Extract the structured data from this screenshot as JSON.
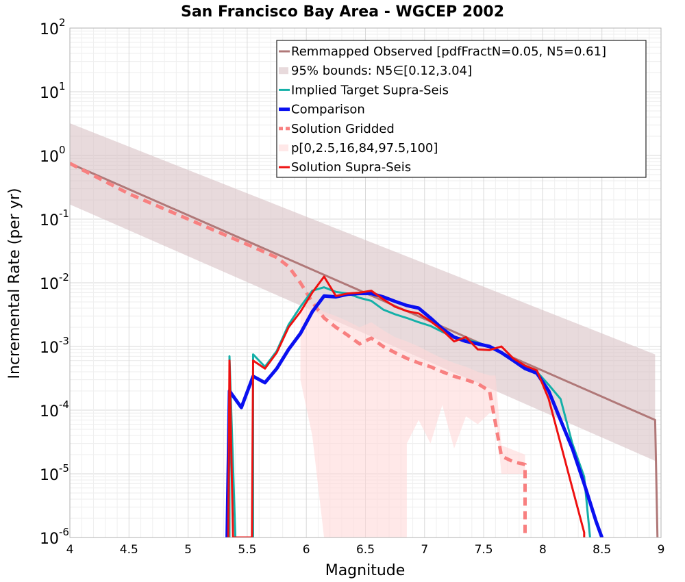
{
  "chart_data": {
    "type": "line",
    "title": "San Francisco Bay Area - WGCEP 2002",
    "xlabel": "Magnitude",
    "ylabel": "Incremental Rate (per yr)",
    "xlim": [
      4,
      9
    ],
    "ylim": [
      1e-06,
      100
    ],
    "yscale": "log",
    "grid": true,
    "legend_position": "top-right",
    "xticks": [
      "4",
      "4.5",
      "5",
      "5.5",
      "6",
      "6.5",
      "7",
      "7.5",
      "8",
      "8.5",
      "9"
    ],
    "yticks": [
      {
        "base": "10",
        "exp": "-6",
        "value": 1e-06
      },
      {
        "base": "10",
        "exp": "-5",
        "value": 1e-05
      },
      {
        "base": "10",
        "exp": "-4",
        "value": 0.0001
      },
      {
        "base": "10",
        "exp": "-3",
        "value": 0.001
      },
      {
        "base": "10",
        "exp": "-2",
        "value": 0.01
      },
      {
        "base": "10",
        "exp": "-1",
        "value": 0.1
      },
      {
        "base": "10",
        "exp": "0",
        "value": 1
      },
      {
        "base": "10",
        "exp": "1",
        "value": 10
      },
      {
        "base": "10",
        "exp": "2",
        "value": 100
      }
    ],
    "series": [
      {
        "name": "Remmapped Observed [pdfFractN=0.05, N5=0.61]",
        "style": "line",
        "color": "#b07878",
        "width": 3,
        "points": [
          [
            4.0,
            0.75
          ],
          [
            8.95,
            7e-05
          ],
          [
            8.97,
            1e-06
          ]
        ]
      },
      {
        "name": "95% bounds: N5∈[0.12,3.04]",
        "style": "band",
        "color": "#d9c2c4",
        "opacity": 0.6,
        "upper": [
          [
            4.0,
            3.2
          ],
          [
            8.95,
            0.00075
          ]
        ],
        "lower": [
          [
            4.0,
            0.17
          ],
          [
            8.95,
            1.6e-05
          ]
        ]
      },
      {
        "name": "Implied Target Supra-Seis",
        "style": "line",
        "color": "#14b0a8",
        "width": 3,
        "points": [
          [
            5.35,
            1e-06
          ],
          [
            5.35,
            0.0007
          ],
          [
            5.4,
            1e-06
          ],
          [
            5.55,
            1e-06
          ],
          [
            5.55,
            0.00075
          ],
          [
            5.65,
            0.00048
          ],
          [
            5.75,
            0.00085
          ],
          [
            5.85,
            0.0022
          ],
          [
            5.95,
            0.0042
          ],
          [
            6.05,
            0.0075
          ],
          [
            6.15,
            0.0085
          ],
          [
            6.25,
            0.0072
          ],
          [
            6.35,
            0.0068
          ],
          [
            6.45,
            0.0058
          ],
          [
            6.55,
            0.0052
          ],
          [
            6.65,
            0.0038
          ],
          [
            6.75,
            0.0032
          ],
          [
            6.85,
            0.0028
          ],
          [
            6.95,
            0.0024
          ],
          [
            7.05,
            0.0021
          ],
          [
            7.15,
            0.0017
          ],
          [
            7.25,
            0.0014
          ],
          [
            7.35,
            0.0013
          ],
          [
            7.45,
            0.00115
          ],
          [
            7.55,
            0.001
          ],
          [
            7.65,
            0.0008
          ],
          [
            7.75,
            0.0006
          ],
          [
            7.85,
            0.00048
          ],
          [
            7.95,
            0.0004
          ],
          [
            8.05,
            0.00025
          ],
          [
            8.15,
            0.00015
          ],
          [
            8.25,
            3e-05
          ],
          [
            8.35,
            9e-06
          ],
          [
            8.4,
            1e-06
          ]
        ]
      },
      {
        "name": "Comparison",
        "style": "line",
        "color": "#0a10f0",
        "width": 5,
        "points": [
          [
            5.33,
            1e-06
          ],
          [
            5.35,
            0.0002
          ],
          [
            5.45,
            0.00011
          ],
          [
            5.55,
            0.00034
          ],
          [
            5.65,
            0.00027
          ],
          [
            5.75,
            0.00045
          ],
          [
            5.85,
            0.0009
          ],
          [
            5.95,
            0.0016
          ],
          [
            6.05,
            0.0035
          ],
          [
            6.15,
            0.0062
          ],
          [
            6.25,
            0.006
          ],
          [
            6.35,
            0.0066
          ],
          [
            6.45,
            0.0068
          ],
          [
            6.55,
            0.0068
          ],
          [
            6.65,
            0.006
          ],
          [
            6.75,
            0.0051
          ],
          [
            6.85,
            0.0044
          ],
          [
            6.95,
            0.004
          ],
          [
            7.05,
            0.0028
          ],
          [
            7.15,
            0.0019
          ],
          [
            7.25,
            0.0014
          ],
          [
            7.35,
            0.0012
          ],
          [
            7.45,
            0.0011
          ],
          [
            7.55,
            0.001
          ],
          [
            7.65,
            0.0008
          ],
          [
            7.75,
            0.0006
          ],
          [
            7.85,
            0.00045
          ],
          [
            7.95,
            0.00038
          ],
          [
            8.05,
            0.0002
          ],
          [
            8.15,
            7e-05
          ],
          [
            8.25,
            2.5e-05
          ],
          [
            8.35,
            7e-06
          ],
          [
            8.45,
            1.8e-06
          ],
          [
            8.5,
            1e-06
          ]
        ]
      },
      {
        "name": "Solution Gridded",
        "style": "dashed",
        "color": "#f88080",
        "width": 5,
        "points": [
          [
            4.0,
            0.75
          ],
          [
            4.5,
            0.25
          ],
          [
            5.0,
            0.1
          ],
          [
            5.5,
            0.04
          ],
          [
            5.75,
            0.025
          ],
          [
            5.85,
            0.018
          ],
          [
            5.95,
            0.01
          ],
          [
            6.05,
            0.005
          ],
          [
            6.15,
            0.0028
          ],
          [
            6.25,
            0.002
          ],
          [
            6.35,
            0.0015
          ],
          [
            6.45,
            0.0011
          ],
          [
            6.55,
            0.00135
          ],
          [
            6.65,
            0.001
          ],
          [
            6.75,
            0.0008
          ],
          [
            6.85,
            0.00065
          ],
          [
            6.95,
            0.00055
          ],
          [
            7.05,
            0.00048
          ],
          [
            7.15,
            0.0004
          ],
          [
            7.25,
            0.00034
          ],
          [
            7.35,
            0.0003
          ],
          [
            7.45,
            0.00026
          ],
          [
            7.55,
            0.0002
          ],
          [
            7.65,
            1.9e-05
          ],
          [
            7.75,
            1.55e-05
          ],
          [
            7.85,
            1.4e-05
          ],
          [
            7.85,
            1e-06
          ]
        ]
      },
      {
        "name": "p[0,2.5,16,84,97.5,100]",
        "style": "band",
        "color": "#ffd8d8",
        "opacity": 0.6,
        "upper": [
          [
            5.95,
            0.006
          ],
          [
            6.05,
            0.0045
          ],
          [
            6.15,
            0.0035
          ],
          [
            6.25,
            0.003
          ],
          [
            6.35,
            0.0025
          ],
          [
            6.45,
            0.002
          ],
          [
            6.55,
            0.0024
          ],
          [
            6.65,
            0.0018
          ],
          [
            6.75,
            0.0014
          ],
          [
            6.85,
            0.0012
          ],
          [
            6.95,
            0.001
          ],
          [
            7.05,
            0.0008
          ],
          [
            7.15,
            0.00065
          ],
          [
            7.25,
            0.00055
          ],
          [
            7.35,
            0.00048
          ],
          [
            7.45,
            0.0004
          ],
          [
            7.55,
            0.00035
          ],
          [
            7.6,
            0.00035
          ],
          [
            7.65,
            2.8e-05
          ],
          [
            7.85,
            2e-05
          ]
        ],
        "lower": [
          [
            5.95,
            0.0003
          ],
          [
            6.05,
            4e-05
          ],
          [
            6.15,
            1e-06
          ],
          [
            6.85,
            1e-06
          ],
          [
            6.85,
            3e-05
          ],
          [
            6.95,
            7e-05
          ],
          [
            7.05,
            3e-05
          ],
          [
            7.15,
            0.00012
          ],
          [
            7.25,
            2.5e-05
          ],
          [
            7.35,
            8e-05
          ],
          [
            7.45,
            6e-05
          ],
          [
            7.55,
            9e-05
          ],
          [
            7.6,
            9e-05
          ],
          [
            7.65,
            1e-05
          ],
          [
            7.85,
            1e-05
          ]
        ]
      },
      {
        "name": "Solution Supra-Seis",
        "style": "line",
        "color": "#ee1010",
        "width": 3,
        "points": [
          [
            5.34,
            1e-06
          ],
          [
            5.35,
            0.0006
          ],
          [
            5.38,
            1e-06
          ],
          [
            5.54,
            1e-06
          ],
          [
            5.55,
            0.0006
          ],
          [
            5.65,
            0.00045
          ],
          [
            5.75,
            0.0008
          ],
          [
            5.85,
            0.002
          ],
          [
            5.95,
            0.0035
          ],
          [
            6.05,
            0.007
          ],
          [
            6.15,
            0.0125
          ],
          [
            6.25,
            0.0062
          ],
          [
            6.35,
            0.0068
          ],
          [
            6.45,
            0.007
          ],
          [
            6.55,
            0.0075
          ],
          [
            6.65,
            0.0055
          ],
          [
            6.75,
            0.0042
          ],
          [
            6.85,
            0.0036
          ],
          [
            6.95,
            0.0033
          ],
          [
            7.05,
            0.0025
          ],
          [
            7.15,
            0.0018
          ],
          [
            7.25,
            0.0012
          ],
          [
            7.35,
            0.0014
          ],
          [
            7.45,
            0.0009
          ],
          [
            7.55,
            0.00088
          ],
          [
            7.65,
            0.001
          ],
          [
            7.75,
            0.00065
          ],
          [
            7.85,
            0.0005
          ],
          [
            7.95,
            0.00042
          ],
          [
            8.05,
            0.00015
          ],
          [
            8.15,
            3e-05
          ],
          [
            8.25,
            6e-06
          ],
          [
            8.35,
            1.2e-06
          ],
          [
            8.35,
            1e-06
          ]
        ]
      }
    ]
  }
}
